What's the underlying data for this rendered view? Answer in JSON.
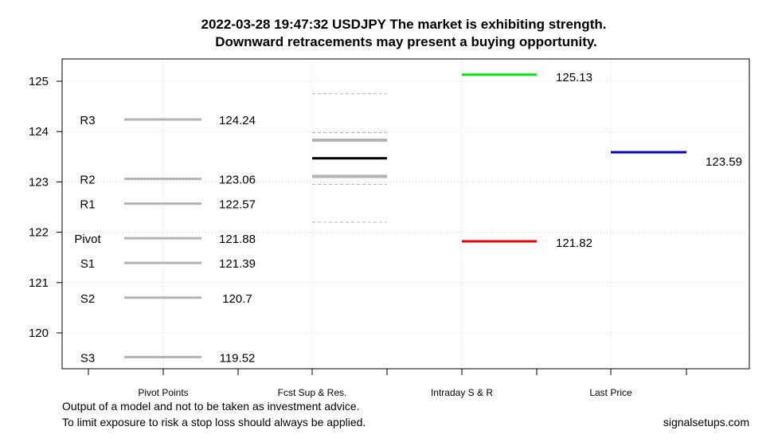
{
  "title": {
    "line1": "2022-03-28 19:47:32 USDJPY The market is exhibiting strength.",
    "line2": "Downward retracements  may present a buying opportunity."
  },
  "footer": {
    "disclaimer1": "Output of a model and not to be taken as investment advice.",
    "disclaimer2": "To limit exposure to risk a stop loss should always be applied.",
    "source": "signalsetups.com"
  },
  "colors": {
    "pivot": "#b3b3b3",
    "forecast_main": "#000000",
    "forecast_band": "#b3b3b3",
    "forecast_outer": "#b3b3b3",
    "intraday_resistance": "#00ee00",
    "intraday_support": "#ee0000",
    "last_price": "#0000cd",
    "grid": "#d3d3d3"
  },
  "chart_data": {
    "type": "line",
    "ylim": [
      119.3,
      125.45
    ],
    "yticks": [
      120,
      121,
      122,
      123,
      124,
      125
    ],
    "grid": true,
    "categories": [
      "Pivot Points",
      "Fcst Sup & Res.",
      "Intraday S & R",
      "Last Price"
    ],
    "pivot_points": [
      {
        "label": "R3",
        "value": 124.24,
        "value_label": "124.24"
      },
      {
        "label": "R2",
        "value": 123.06,
        "value_label": "123.06"
      },
      {
        "label": "R1",
        "value": 122.57,
        "value_label": "122.57"
      },
      {
        "label": "Pivot",
        "value": 121.88,
        "value_label": "121.88"
      },
      {
        "label": "S1",
        "value": 121.39,
        "value_label": "121.39"
      },
      {
        "label": "S2",
        "value": 120.7,
        "value_label": "120.7"
      },
      {
        "label": "S3",
        "value": 119.52,
        "value_label": "119.52"
      }
    ],
    "forecast": {
      "center": 123.47,
      "inner_upper": 123.83,
      "inner_lower": 123.11,
      "mid_upper": 123.98,
      "mid_lower": 122.95,
      "outer_upper": 124.75,
      "outer_lower": 122.2
    },
    "intraday": {
      "resistance": 125.13,
      "resistance_label": "125.13",
      "support": 121.82,
      "support_label": "121.82"
    },
    "last_price": {
      "value": 123.59,
      "value_label": "123.59"
    }
  }
}
